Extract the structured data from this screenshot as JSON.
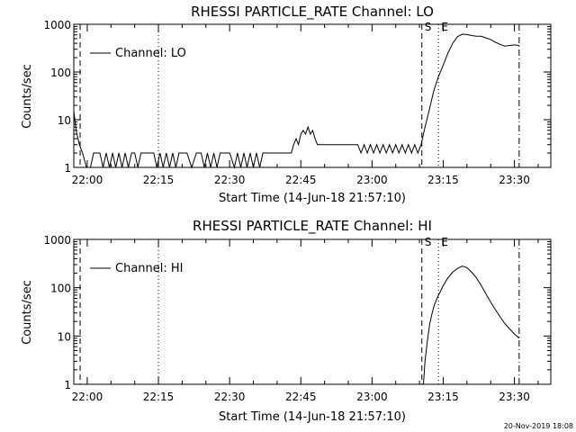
{
  "footer_stamp": "20-Nov-2019 18:08",
  "chart_data": [
    {
      "type": "line",
      "title": "RHESSI PARTICLE_RATE Channel: LO",
      "xlabel": "Start Time (14-Jun-18 21:57:10)",
      "ylabel": "Counts/sec",
      "y_scale": "log",
      "ylim": [
        1,
        1000
      ],
      "xlim": [
        "21:57:10",
        "23:37:40"
      ],
      "x_ticks": [
        "22:00",
        "22:15",
        "22:30",
        "22:45",
        "23:00",
        "23:15",
        "23:30"
      ],
      "y_ticks": [
        "1",
        "10",
        "100",
        "1000"
      ],
      "legend": {
        "label": "Channel: LO",
        "placement": "top-left"
      },
      "markers": [
        {
          "label": "",
          "time": "21:58:30",
          "style": "dashed"
        },
        {
          "label": "",
          "time": "22:15:00",
          "style": "dotted"
        },
        {
          "label": "S",
          "time": "23:10:30",
          "style": "dashed"
        },
        {
          "label": "E",
          "time": "23:14:00",
          "style": "dotted"
        },
        {
          "label": "",
          "time": "23:31:00",
          "style": "dashdot"
        }
      ],
      "series": [
        {
          "name": "Channel: LO",
          "x": [
            "21:57:10",
            "21:57:40",
            "21:58:20",
            "21:59:00",
            "21:59:50",
            "22:00:40",
            "22:01:20",
            "22:02:00",
            "22:02:40",
            "22:03:20",
            "22:04:00",
            "22:04:40",
            "22:05:20",
            "22:06:00",
            "22:06:40",
            "22:07:20",
            "22:08:00",
            "22:08:40",
            "22:09:20",
            "22:10:00",
            "22:10:40",
            "22:11:20",
            "22:12:00",
            "22:13:00",
            "22:14:00",
            "22:14:40",
            "22:15:20",
            "22:16:00",
            "22:16:40",
            "22:17:20",
            "22:18:00",
            "22:18:40",
            "22:19:20",
            "22:20:00",
            "22:21:00",
            "22:22:00",
            "22:23:00",
            "22:24:00",
            "22:24:40",
            "22:25:20",
            "22:26:00",
            "22:26:40",
            "22:27:20",
            "22:28:00",
            "22:29:00",
            "22:30:00",
            "22:31:00",
            "22:31:40",
            "22:32:20",
            "22:33:00",
            "22:33:40",
            "22:34:20",
            "22:35:00",
            "22:35:40",
            "22:36:20",
            "22:37:00",
            "22:38:00",
            "22:39:00",
            "22:40:00",
            "22:41:00",
            "22:42:00",
            "22:43:00",
            "22:43:30",
            "22:44:00",
            "22:44:30",
            "22:45:00",
            "22:45:30",
            "22:46:00",
            "22:46:30",
            "22:47:00",
            "22:47:30",
            "22:48:00",
            "22:48:30",
            "22:49:00",
            "22:50:00",
            "22:51:00",
            "22:52:00",
            "22:53:00",
            "22:54:00",
            "22:55:00",
            "22:56:00",
            "22:57:00",
            "22:57:40",
            "22:58:20",
            "22:59:00",
            "22:59:40",
            "23:00:20",
            "23:01:00",
            "23:01:40",
            "23:02:20",
            "23:03:00",
            "23:03:40",
            "23:04:20",
            "23:05:00",
            "23:05:40",
            "23:06:20",
            "23:07:00",
            "23:07:40",
            "23:08:20",
            "23:09:00",
            "23:09:40",
            "23:10:20",
            "23:11:00",
            "23:12:00",
            "23:13:00",
            "23:14:00",
            "23:15:00",
            "23:16:00",
            "23:17:00",
            "23:18:00",
            "23:19:00",
            "23:20:00",
            "23:21:00",
            "23:22:00",
            "23:23:00",
            "23:24:00",
            "23:25:00",
            "23:26:00",
            "23:27:00",
            "23:28:00",
            "23:29:00",
            "23:30:00",
            "23:31:00"
          ],
          "values": [
            15,
            6,
            3,
            2,
            1,
            1,
            2,
            2,
            2,
            1,
            2,
            1,
            2,
            1,
            2,
            1,
            2,
            1,
            2,
            2,
            1,
            2,
            2,
            2,
            2,
            1,
            2,
            1,
            2,
            1,
            2,
            1,
            2,
            2,
            2,
            1,
            2,
            2,
            1,
            2,
            1,
            2,
            1,
            2,
            2,
            2,
            1,
            2,
            1,
            2,
            1,
            2,
            1,
            2,
            1,
            2,
            2,
            2,
            2,
            2,
            2,
            2,
            3,
            4,
            3,
            5,
            6,
            5,
            7,
            5,
            6,
            4,
            3,
            3,
            3,
            3,
            3,
            3,
            3,
            3,
            3,
            3,
            2,
            3,
            2,
            3,
            2,
            3,
            2,
            3,
            2,
            3,
            2,
            3,
            2,
            3,
            2,
            3,
            2,
            3,
            2,
            3,
            6,
            15,
            40,
            80,
            140,
            250,
            400,
            550,
            620,
            610,
            580,
            560,
            560,
            520,
            480,
            420,
            380,
            350,
            360,
            370,
            360
          ]
        }
      ]
    },
    {
      "type": "line",
      "title": "RHESSI PARTICLE_RATE Channel: HI",
      "xlabel": "Start Time (14-Jun-18 21:57:10)",
      "ylabel": "Counts/sec",
      "y_scale": "log",
      "ylim": [
        1,
        1000
      ],
      "xlim": [
        "21:57:10",
        "23:37:40"
      ],
      "x_ticks": [
        "22:00",
        "22:15",
        "22:30",
        "22:45",
        "23:00",
        "23:15",
        "23:30"
      ],
      "y_ticks": [
        "1",
        "10",
        "100",
        "1000"
      ],
      "legend": {
        "label": "Channel: HI",
        "placement": "top-left"
      },
      "markers": [
        {
          "label": "",
          "time": "21:58:30",
          "style": "dashed"
        },
        {
          "label": "",
          "time": "22:15:00",
          "style": "dotted"
        },
        {
          "label": "S",
          "time": "23:10:30",
          "style": "dashed"
        },
        {
          "label": "E",
          "time": "23:14:00",
          "style": "dotted"
        },
        {
          "label": "",
          "time": "23:31:00",
          "style": "dashdot"
        }
      ],
      "series": [
        {
          "name": "Channel: HI",
          "x": [
            "23:10:50",
            "23:11:10",
            "23:11:40",
            "23:12:10",
            "23:12:40",
            "23:13:10",
            "23:14:00",
            "23:15:00",
            "23:16:00",
            "23:17:00",
            "23:18:00",
            "23:19:00",
            "23:20:00",
            "23:21:00",
            "23:22:00",
            "23:23:00",
            "23:24:00",
            "23:25:00",
            "23:26:00",
            "23:27:00",
            "23:28:00",
            "23:29:00",
            "23:30:00",
            "23:31:00"
          ],
          "values": [
            1,
            3,
            8,
            18,
            30,
            45,
            70,
            110,
            160,
            210,
            250,
            280,
            260,
            210,
            160,
            110,
            75,
            50,
            35,
            25,
            18,
            14,
            11,
            9
          ]
        }
      ]
    }
  ]
}
